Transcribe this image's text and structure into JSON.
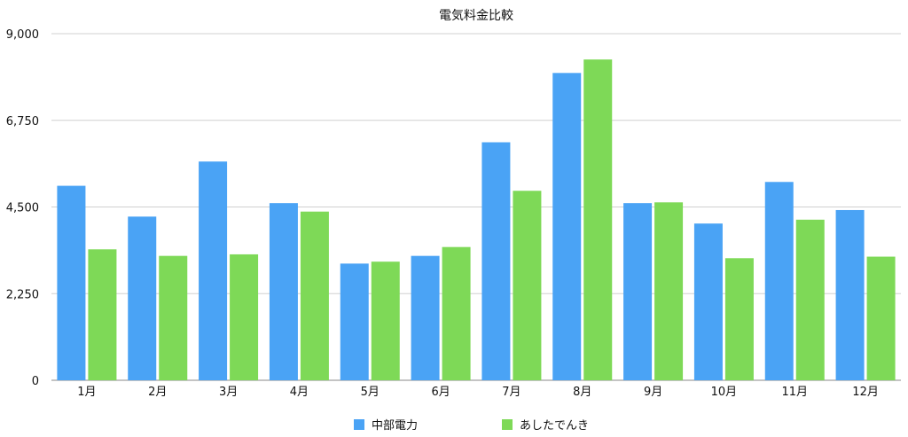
{
  "chart_data": {
    "type": "bar",
    "title": "電気料金比較",
    "xlabel": "",
    "ylabel": "",
    "categories": [
      "1月",
      "2月",
      "3月",
      "4月",
      "5月",
      "6月",
      "7月",
      "8月",
      "9月",
      "10月",
      "11月",
      "12月"
    ],
    "series": [
      {
        "name": "中部電力",
        "color": "#4aa3f5",
        "values": [
          5050,
          4250,
          5680,
          4600,
          3030,
          3230,
          6180,
          7980,
          4600,
          4070,
          5150,
          4420
        ]
      },
      {
        "name": "あしたでんき",
        "color": "#7ed957",
        "values": [
          3400,
          3230,
          3270,
          4380,
          3080,
          3460,
          4920,
          8330,
          4620,
          3170,
          4170,
          3210
        ]
      }
    ],
    "ylim": [
      0,
      9000
    ],
    "yticks": [
      0,
      2250,
      4500,
      6750,
      9000
    ],
    "ytick_labels": [
      "0",
      "2,250",
      "4,500",
      "6,750",
      "9,000"
    ],
    "grid": true,
    "legend": "bottom-center"
  }
}
